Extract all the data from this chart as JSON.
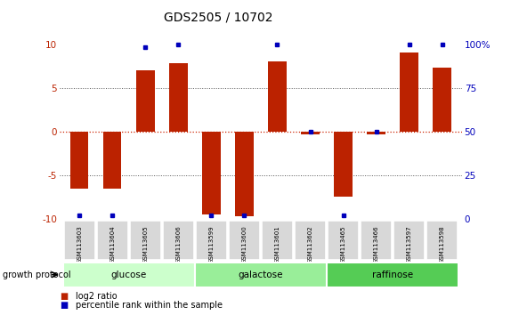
{
  "title": "GDS2505 / 10702",
  "samples": [
    "GSM113603",
    "GSM113604",
    "GSM113605",
    "GSM113606",
    "GSM113599",
    "GSM113600",
    "GSM113601",
    "GSM113602",
    "GSM113465",
    "GSM113466",
    "GSM113597",
    "GSM113598"
  ],
  "log2_ratio": [
    -6.5,
    -6.5,
    7.0,
    7.8,
    -9.5,
    -9.7,
    8.0,
    -0.3,
    -7.5,
    -0.3,
    9.0,
    7.3
  ],
  "percentile": [
    2,
    2,
    98,
    100,
    2,
    2,
    100,
    50,
    2,
    50,
    100,
    100
  ],
  "groups": [
    {
      "label": "glucose",
      "start": 0,
      "end": 4,
      "color": "#ccffcc"
    },
    {
      "label": "galactose",
      "start": 4,
      "end": 8,
      "color": "#99ee99"
    },
    {
      "label": "raffinose",
      "start": 8,
      "end": 12,
      "color": "#55cc55"
    }
  ],
  "ylim": [
    -10,
    10
  ],
  "yticks_left": [
    -10,
    -5,
    0,
    5,
    10
  ],
  "yticks_right": [
    0,
    25,
    50,
    75,
    100
  ],
  "bar_color": "#bb2200",
  "percentile_color": "#0000bb",
  "zero_line_color": "#cc2200",
  "grid_color": "#555555"
}
